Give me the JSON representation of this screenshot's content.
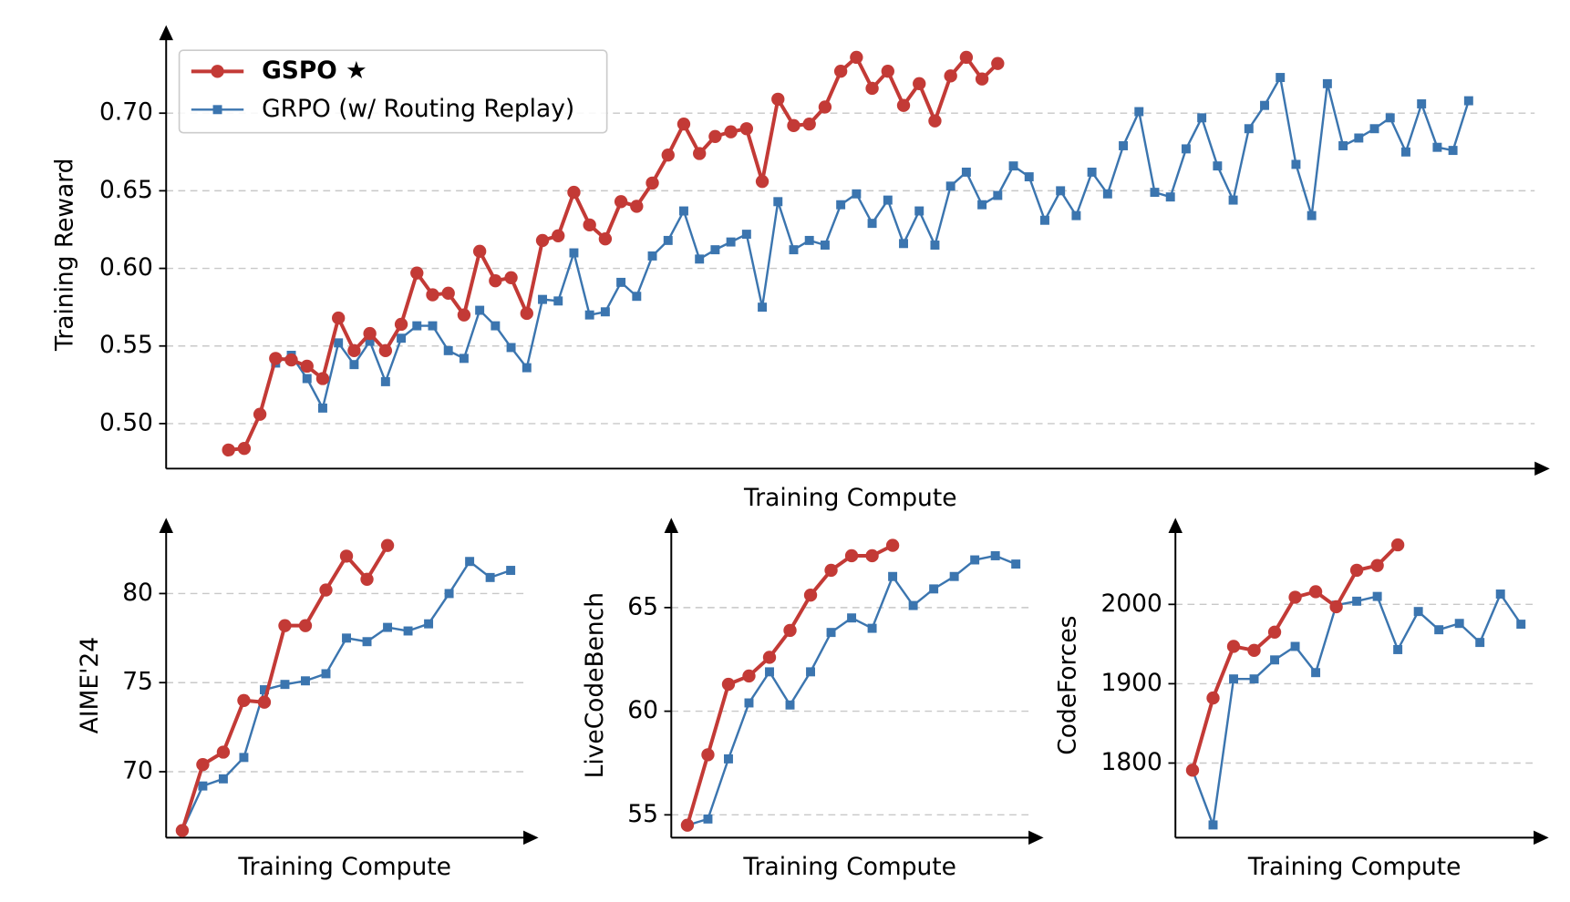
{
  "chart_data": [
    {
      "type": "line",
      "ylabel": "Training Reward",
      "xlabel": "Training Compute",
      "ylim": [
        0.471,
        0.747
      ],
      "yticks": [
        {
          "value": 0.5,
          "label": "0.50"
        },
        0.55,
        {
          "value": 0.6,
          "label": "0.60"
        },
        0.65,
        {
          "value": 0.7,
          "label": "0.70"
        }
      ],
      "grid": true,
      "legend": "upper left",
      "series": [
        {
          "name": "GSPO ★",
          "color": "#c33a36",
          "values": [
            0.483,
            0.484,
            0.506,
            0.542,
            0.541,
            0.537,
            0.529,
            0.568,
            0.547,
            0.558,
            0.547,
            0.564,
            0.597,
            0.583,
            0.584,
            0.57,
            0.611,
            0.592,
            0.594,
            0.571,
            0.618,
            0.621,
            0.649,
            0.628,
            0.619,
            0.643,
            0.64,
            0.655,
            0.673,
            0.693,
            0.674,
            0.685,
            0.688,
            0.69,
            0.656,
            0.709,
            0.692,
            0.693,
            0.704,
            0.727,
            0.736,
            0.716,
            0.727,
            0.705,
            0.719,
            0.695,
            0.724,
            0.736,
            0.722,
            0.732,
            null,
            null,
            null,
            null,
            null,
            null,
            null,
            null,
            null,
            null,
            null,
            null,
            null,
            null,
            null,
            null,
            null,
            null,
            null,
            null,
            null,
            null,
            null,
            null,
            null,
            null,
            null,
            null,
            null,
            null
          ]
        },
        {
          "name": "GRPO (w/ Routing Replay)",
          "color": "#3b75af",
          "values": [
            null,
            null,
            null,
            0.539,
            0.544,
            0.529,
            0.51,
            0.552,
            0.538,
            0.553,
            0.527,
            0.555,
            0.563,
            0.563,
            0.547,
            0.542,
            0.573,
            0.563,
            0.549,
            0.536,
            0.58,
            0.579,
            0.61,
            0.57,
            0.572,
            0.591,
            0.582,
            0.608,
            0.618,
            0.637,
            0.606,
            0.612,
            0.617,
            0.622,
            0.575,
            0.643,
            0.612,
            0.618,
            0.615,
            0.641,
            0.648,
            0.629,
            0.644,
            0.616,
            0.637,
            0.615,
            0.653,
            0.662,
            0.641,
            0.647,
            0.666,
            0.659,
            0.631,
            0.65,
            0.634,
            0.662,
            0.648,
            0.679,
            0.701,
            0.649,
            0.646,
            0.677,
            0.697,
            0.666,
            0.644,
            0.69,
            0.705,
            0.723,
            0.667,
            0.634,
            0.719,
            0.679,
            0.684,
            0.69,
            0.697,
            0.675,
            0.706,
            0.678,
            0.676,
            0.708
          ]
        }
      ]
    },
    {
      "type": "line",
      "ylabel": "AIME'24",
      "xlabel": "Training Compute",
      "ylim": [
        66.3,
        83.4
      ],
      "yticks": [
        70,
        75,
        80
      ],
      "grid": true,
      "series": [
        {
          "color": "#c33a36",
          "values": [
            66.7,
            70.4,
            71.1,
            74.0,
            73.9,
            78.2,
            78.2,
            80.2,
            82.1,
            80.8,
            82.7,
            null,
            null,
            null,
            null,
            null,
            null
          ]
        },
        {
          "color": "#3b75af",
          "values": [
            66.7,
            69.2,
            69.6,
            70.8,
            74.6,
            74.9,
            75.1,
            75.5,
            77.5,
            77.3,
            78.1,
            77.9,
            78.3,
            80.0,
            81.8,
            80.9,
            81.3
          ]
        }
      ]
    },
    {
      "type": "line",
      "ylabel": "LiveCodeBench",
      "xlabel": "Training Compute",
      "ylim": [
        53.9,
        68.6
      ],
      "yticks": [
        55,
        60,
        65
      ],
      "grid": true,
      "series": [
        {
          "color": "#c33a36",
          "values": [
            54.5,
            57.9,
            61.3,
            61.7,
            62.6,
            63.9,
            65.6,
            66.8,
            67.5,
            67.5,
            68.0,
            null,
            null,
            null,
            null,
            null,
            null
          ]
        },
        {
          "color": "#3b75af",
          "values": [
            54.5,
            54.8,
            57.7,
            60.4,
            61.9,
            60.3,
            61.9,
            63.8,
            64.5,
            64.0,
            66.5,
            65.1,
            65.9,
            66.5,
            67.3,
            67.5,
            67.1
          ]
        }
      ]
    },
    {
      "type": "line",
      "ylabel": "CodeForces",
      "xlabel": "Training Compute",
      "ylim": [
        1706,
        2090
      ],
      "yticks": [
        1800,
        1900,
        2000
      ],
      "grid": true,
      "series": [
        {
          "color": "#c33a36",
          "values": [
            1791,
            1882,
            1947,
            1942,
            1965,
            2009,
            2016,
            1997,
            2043,
            2049,
            2075,
            null,
            null,
            null,
            null,
            null,
            null
          ]
        },
        {
          "color": "#3b75af",
          "values": [
            1791,
            1722,
            1906,
            1906,
            1930,
            1947,
            1914,
            1999,
            2004,
            2010,
            1943,
            1991,
            1968,
            1976,
            1952,
            2013,
            1975
          ]
        }
      ]
    }
  ]
}
